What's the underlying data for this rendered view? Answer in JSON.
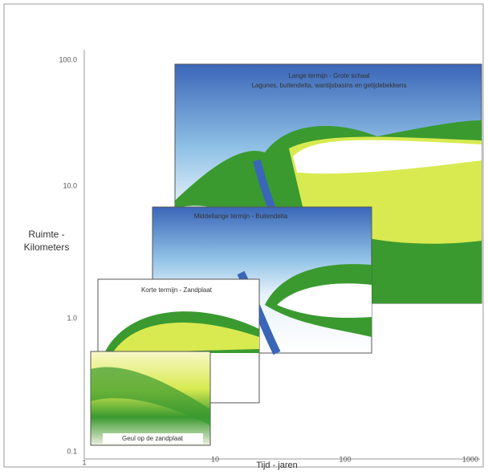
{
  "axes": {
    "y_label": [
      "Ruimte -",
      "Kilometers"
    ],
    "x_label": "Tijd - jaren",
    "y_ticks": [
      "100.0",
      "10.0",
      "1.0",
      "0.1"
    ],
    "x_ticks": [
      "1",
      "10",
      "100",
      "1000"
    ]
  },
  "panels": [
    {
      "title": "Lange termijn - Grote schaal",
      "subtitle": "Lagunes, buitendelta, wantijsbasins en getijdebekkens"
    },
    {
      "title": "Middellange termijn - Buitendelta"
    },
    {
      "title": "Korte termijn - Zandplaat"
    },
    {
      "title": "Geul op de zandplaat"
    }
  ]
}
